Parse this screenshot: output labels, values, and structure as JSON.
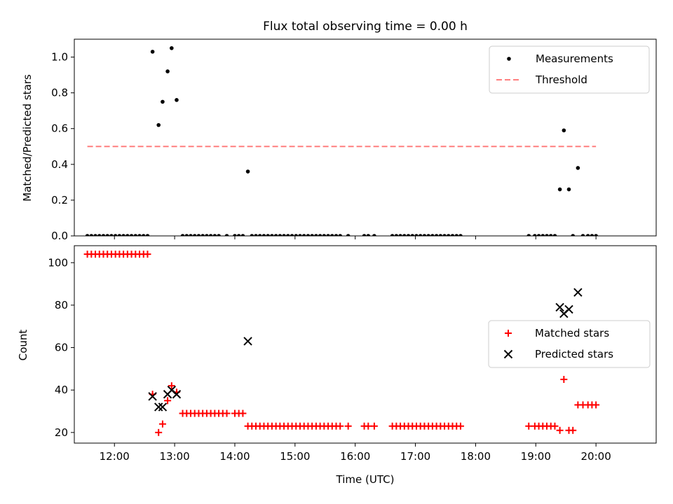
{
  "figure": {
    "title": "Flux total observing time = 0.00 h",
    "xlabel": "Time (UTC)"
  },
  "chart_data": [
    {
      "type": "scatter",
      "ylabel": "Matched/Predicted stars",
      "xlim": [
        "11:20",
        "21:00"
      ],
      "ylim": [
        0,
        1.1
      ],
      "yticks": [
        "0.0",
        "0.2",
        "0.4",
        "0.6",
        "0.8",
        "1.0"
      ],
      "xticks": [
        "12:00",
        "13:00",
        "14:00",
        "15:00",
        "16:00",
        "17:00",
        "18:00",
        "19:00",
        "20:00"
      ],
      "legend_position": "top-right",
      "colors": {
        "measurements": "#000000",
        "threshold": "#ff7f7f"
      },
      "series": [
        {
          "name": "Measurements",
          "marker": "dot",
          "points": [
            [
              "11:33",
              0
            ],
            [
              "11:37",
              0
            ],
            [
              "11:41",
              0
            ],
            [
              "11:45",
              0
            ],
            [
              "11:49",
              0
            ],
            [
              "11:53",
              0
            ],
            [
              "11:57",
              0
            ],
            [
              "12:01",
              0
            ],
            [
              "12:05",
              0
            ],
            [
              "12:09",
              0
            ],
            [
              "12:13",
              0
            ],
            [
              "12:17",
              0
            ],
            [
              "12:21",
              0
            ],
            [
              "12:25",
              0
            ],
            [
              "12:29",
              0
            ],
            [
              "12:33",
              0
            ],
            [
              "12:38",
              1.03
            ],
            [
              "12:44",
              0.62
            ],
            [
              "12:48",
              0.75
            ],
            [
              "12:53",
              0.92
            ],
            [
              "12:57",
              1.05
            ],
            [
              "13:02",
              0.76
            ],
            [
              "13:08",
              0
            ],
            [
              "13:12",
              0
            ],
            [
              "13:16",
              0
            ],
            [
              "13:20",
              0
            ],
            [
              "13:24",
              0
            ],
            [
              "13:28",
              0
            ],
            [
              "13:32",
              0
            ],
            [
              "13:36",
              0
            ],
            [
              "13:40",
              0
            ],
            [
              "13:44",
              0
            ],
            [
              "13:52",
              0
            ],
            [
              "14:00",
              0
            ],
            [
              "14:04",
              0
            ],
            [
              "14:08",
              0
            ],
            [
              "14:13",
              0.36
            ],
            [
              "14:17",
              0
            ],
            [
              "14:21",
              0
            ],
            [
              "14:25",
              0
            ],
            [
              "14:29",
              0
            ],
            [
              "14:33",
              0
            ],
            [
              "14:37",
              0
            ],
            [
              "14:41",
              0
            ],
            [
              "14:45",
              0
            ],
            [
              "14:49",
              0
            ],
            [
              "14:53",
              0
            ],
            [
              "14:57",
              0
            ],
            [
              "15:01",
              0
            ],
            [
              "15:05",
              0
            ],
            [
              "15:09",
              0
            ],
            [
              "15:13",
              0
            ],
            [
              "15:17",
              0
            ],
            [
              "15:21",
              0
            ],
            [
              "15:25",
              0
            ],
            [
              "15:29",
              0
            ],
            [
              "15:33",
              0
            ],
            [
              "15:37",
              0
            ],
            [
              "15:41",
              0
            ],
            [
              "15:45",
              0
            ],
            [
              "15:53",
              0
            ],
            [
              "16:09",
              0
            ],
            [
              "16:13",
              0
            ],
            [
              "16:19",
              0
            ],
            [
              "16:37",
              0
            ],
            [
              "16:41",
              0
            ],
            [
              "16:45",
              0
            ],
            [
              "16:49",
              0
            ],
            [
              "16:53",
              0
            ],
            [
              "16:57",
              0
            ],
            [
              "17:01",
              0
            ],
            [
              "17:05",
              0
            ],
            [
              "17:09",
              0
            ],
            [
              "17:13",
              0
            ],
            [
              "17:17",
              0
            ],
            [
              "17:21",
              0
            ],
            [
              "17:25",
              0
            ],
            [
              "17:29",
              0
            ],
            [
              "17:33",
              0
            ],
            [
              "17:37",
              0
            ],
            [
              "17:41",
              0
            ],
            [
              "17:45",
              0
            ],
            [
              "18:53",
              0
            ],
            [
              "18:59",
              0
            ],
            [
              "19:03",
              0
            ],
            [
              "19:07",
              0
            ],
            [
              "19:11",
              0
            ],
            [
              "19:15",
              0
            ],
            [
              "19:19",
              0
            ],
            [
              "19:24",
              0.26
            ],
            [
              "19:28",
              0.59
            ],
            [
              "19:33",
              0.26
            ],
            [
              "19:37",
              0
            ],
            [
              "19:42",
              0.38
            ],
            [
              "19:47",
              0
            ],
            [
              "19:52",
              0
            ],
            [
              "19:56",
              0
            ],
            [
              "20:00",
              0
            ]
          ]
        },
        {
          "name": "Threshold",
          "marker": "dashed-line",
          "points": [
            [
              "11:33",
              0.5
            ],
            [
              "20:00",
              0.5
            ]
          ]
        }
      ]
    },
    {
      "type": "scatter",
      "ylabel": "Count",
      "xlim": [
        "11:20",
        "21:00"
      ],
      "ylim": [
        15,
        108
      ],
      "yticks": [
        "20",
        "40",
        "60",
        "80",
        "100"
      ],
      "xticks": [
        "12:00",
        "13:00",
        "14:00",
        "15:00",
        "16:00",
        "17:00",
        "18:00",
        "19:00",
        "20:00"
      ],
      "legend_position": "center-right",
      "colors": {
        "matched": "#ff0000",
        "predicted": "#000000"
      },
      "series": [
        {
          "name": "Matched stars",
          "marker": "plus",
          "points": [
            [
              "11:33",
              104
            ],
            [
              "11:37",
              104
            ],
            [
              "11:41",
              104
            ],
            [
              "11:45",
              104
            ],
            [
              "11:49",
              104
            ],
            [
              "11:53",
              104
            ],
            [
              "11:57",
              104
            ],
            [
              "12:01",
              104
            ],
            [
              "12:05",
              104
            ],
            [
              "12:09",
              104
            ],
            [
              "12:13",
              104
            ],
            [
              "12:17",
              104
            ],
            [
              "12:21",
              104
            ],
            [
              "12:25",
              104
            ],
            [
              "12:29",
              104
            ],
            [
              "12:33",
              104
            ],
            [
              "12:38",
              38
            ],
            [
              "12:44",
              20
            ],
            [
              "12:48",
              24
            ],
            [
              "12:53",
              35
            ],
            [
              "12:57",
              42
            ],
            [
              "13:02",
              39
            ],
            [
              "13:08",
              29
            ],
            [
              "13:12",
              29
            ],
            [
              "13:16",
              29
            ],
            [
              "13:20",
              29
            ],
            [
              "13:24",
              29
            ],
            [
              "13:28",
              29
            ],
            [
              "13:32",
              29
            ],
            [
              "13:36",
              29
            ],
            [
              "13:40",
              29
            ],
            [
              "13:44",
              29
            ],
            [
              "13:48",
              29
            ],
            [
              "13:52",
              29
            ],
            [
              "14:00",
              29
            ],
            [
              "14:04",
              29
            ],
            [
              "14:08",
              29
            ],
            [
              "14:13",
              23
            ],
            [
              "14:17",
              23
            ],
            [
              "14:21",
              23
            ],
            [
              "14:25",
              23
            ],
            [
              "14:29",
              23
            ],
            [
              "14:33",
              23
            ],
            [
              "14:37",
              23
            ],
            [
              "14:41",
              23
            ],
            [
              "14:45",
              23
            ],
            [
              "14:49",
              23
            ],
            [
              "14:53",
              23
            ],
            [
              "14:57",
              23
            ],
            [
              "15:01",
              23
            ],
            [
              "15:05",
              23
            ],
            [
              "15:09",
              23
            ],
            [
              "15:13",
              23
            ],
            [
              "15:17",
              23
            ],
            [
              "15:21",
              23
            ],
            [
              "15:25",
              23
            ],
            [
              "15:29",
              23
            ],
            [
              "15:33",
              23
            ],
            [
              "15:37",
              23
            ],
            [
              "15:41",
              23
            ],
            [
              "15:45",
              23
            ],
            [
              "15:53",
              23
            ],
            [
              "16:09",
              23
            ],
            [
              "16:13",
              23
            ],
            [
              "16:19",
              23
            ],
            [
              "16:37",
              23
            ],
            [
              "16:41",
              23
            ],
            [
              "16:45",
              23
            ],
            [
              "16:49",
              23
            ],
            [
              "16:53",
              23
            ],
            [
              "16:57",
              23
            ],
            [
              "17:01",
              23
            ],
            [
              "17:05",
              23
            ],
            [
              "17:09",
              23
            ],
            [
              "17:13",
              23
            ],
            [
              "17:17",
              23
            ],
            [
              "17:21",
              23
            ],
            [
              "17:25",
              23
            ],
            [
              "17:29",
              23
            ],
            [
              "17:33",
              23
            ],
            [
              "17:37",
              23
            ],
            [
              "17:41",
              23
            ],
            [
              "17:45",
              23
            ],
            [
              "18:53",
              23
            ],
            [
              "18:59",
              23
            ],
            [
              "19:03",
              23
            ],
            [
              "19:07",
              23
            ],
            [
              "19:11",
              23
            ],
            [
              "19:15",
              23
            ],
            [
              "19:19",
              23
            ],
            [
              "19:24",
              21
            ],
            [
              "19:28",
              45
            ],
            [
              "19:33",
              21
            ],
            [
              "19:37",
              21
            ],
            [
              "19:42",
              33
            ],
            [
              "19:47",
              33
            ],
            [
              "19:52",
              33
            ],
            [
              "19:56",
              33
            ],
            [
              "20:00",
              33
            ]
          ]
        },
        {
          "name": "Predicted stars",
          "marker": "x",
          "points": [
            [
              "12:38",
              37
            ],
            [
              "12:44",
              32
            ],
            [
              "12:48",
              32
            ],
            [
              "12:53",
              38
            ],
            [
              "12:57",
              40
            ],
            [
              "13:02",
              38
            ],
            [
              "14:13",
              63
            ],
            [
              "19:24",
              79
            ],
            [
              "19:28",
              76
            ],
            [
              "19:33",
              78
            ],
            [
              "19:42",
              86
            ]
          ]
        }
      ]
    }
  ]
}
